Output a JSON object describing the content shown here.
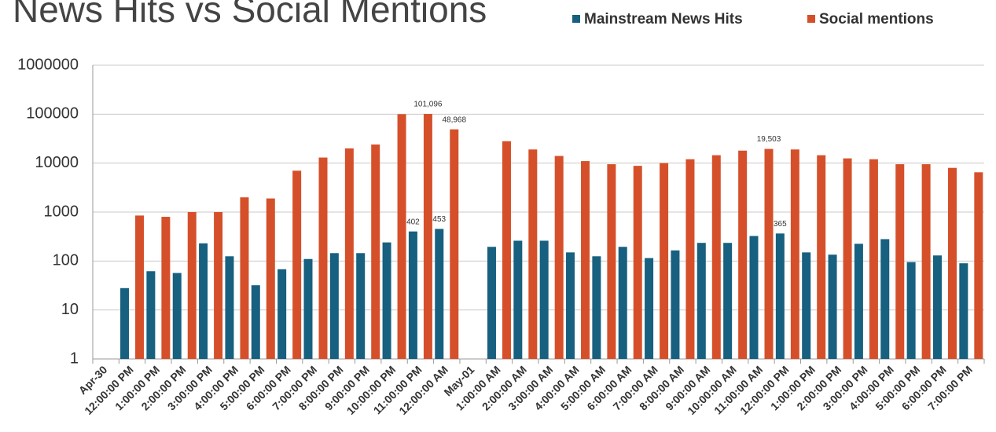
{
  "chart_data": {
    "type": "bar",
    "title": "News Hits vs Social Mentions",
    "log_scale": true,
    "grid": true,
    "legend": "top",
    "categories": [
      "Apr-30",
      "12:00:00 PM",
      "1:00:00 PM",
      "2:00:00 PM",
      "3:00:00 PM",
      "4:00:00 PM",
      "5:00:00 PM",
      "6:00:00 PM",
      "7:00:00 PM",
      "8:00:00 PM",
      "9:00:00 PM",
      "10:00:00 PM",
      "11:00:00 PM",
      "12:00:00 AM",
      "May-01",
      "1:00:00 AM",
      "2:00:00 AM",
      "3:00:00 AM",
      "4:00:00 AM",
      "5:00:00 AM",
      "6:00:00 AM",
      "7:00:00 AM",
      "8:00:00 AM",
      "9:00:00 AM",
      "10:00:00 AM",
      "11:00:00 AM",
      "12:00:00 PM",
      "1:00:00 PM",
      "2:00:00 PM",
      "3:00:00 PM",
      "4:00:00 PM",
      "5:00:00 PM",
      "6:00:00 PM",
      "7:00:00 PM"
    ],
    "series": [
      {
        "name": "Mainstream News Hits",
        "color": "#17607f",
        "values": [
          null,
          28,
          62,
          57,
          230,
          125,
          32,
          68,
          110,
          145,
          145,
          240,
          402,
          453,
          null,
          195,
          260,
          260,
          150,
          125,
          195,
          115,
          165,
          235,
          235,
          325,
          365,
          150,
          135,
          225,
          280,
          95,
          130,
          90
        ],
        "value_labels": [
          null,
          null,
          null,
          null,
          null,
          null,
          null,
          null,
          null,
          null,
          null,
          null,
          "402",
          "453",
          null,
          null,
          null,
          null,
          null,
          null,
          null,
          null,
          null,
          null,
          null,
          null,
          "365",
          null,
          null,
          null,
          null,
          null,
          null,
          null
        ]
      },
      {
        "name": "Social mentions",
        "color": "#d5502a",
        "values": [
          null,
          850,
          800,
          1000,
          1000,
          2000,
          1900,
          7000,
          13000,
          20000,
          24000,
          100000,
          101096,
          48968,
          null,
          28000,
          19000,
          14000,
          11000,
          9500,
          8800,
          10000,
          12000,
          14500,
          18000,
          19503,
          19000,
          14500,
          12500,
          12000,
          9500,
          9500,
          8000,
          6500
        ],
        "value_labels": [
          null,
          null,
          null,
          null,
          null,
          null,
          null,
          null,
          null,
          null,
          null,
          null,
          "101,096",
          "48,968",
          null,
          null,
          null,
          null,
          null,
          null,
          null,
          null,
          null,
          null,
          null,
          "19,503",
          null,
          null,
          null,
          null,
          null,
          null,
          null,
          null
        ]
      }
    ],
    "ylim": [
      1,
      1000000
    ],
    "yticks": [
      1,
      10,
      100,
      1000,
      10000,
      100000,
      1000000
    ]
  }
}
